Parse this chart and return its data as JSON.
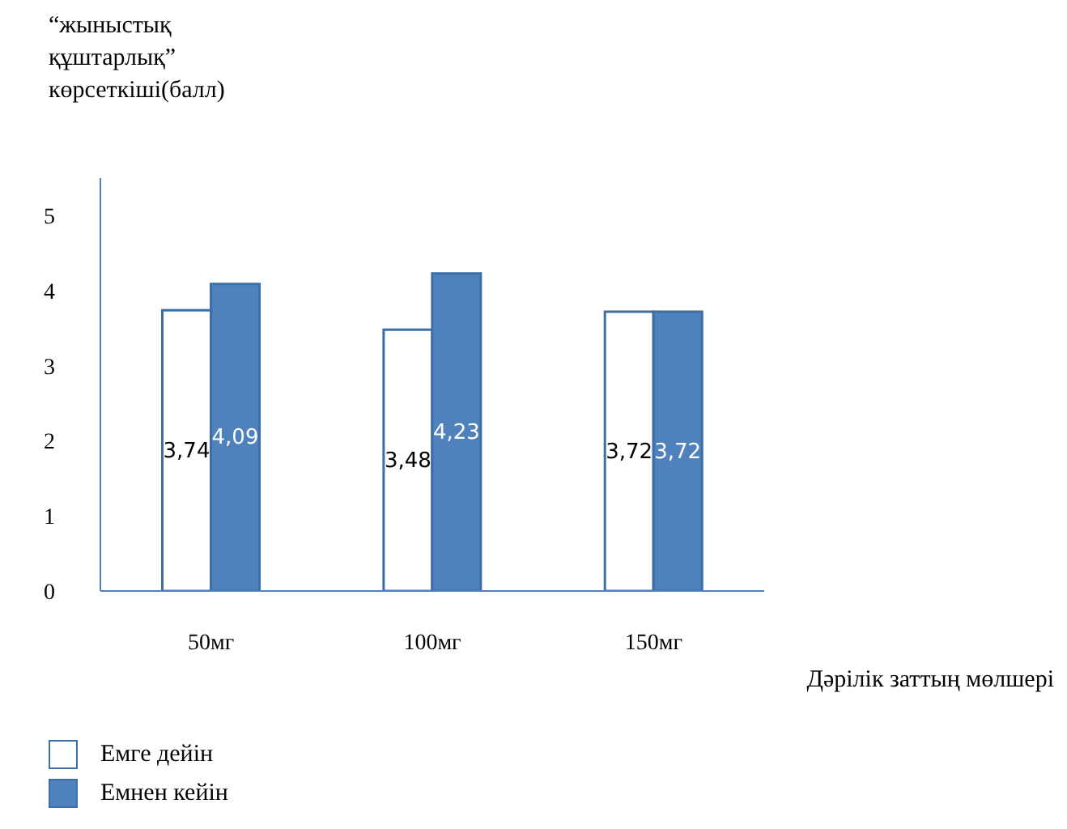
{
  "chart_data": {
    "type": "bar",
    "ylabel": "“жыныстық\nқұштарлық”\nкөрсеткіші(балл)",
    "xlabel": "Дәрілік заттың мөлшері",
    "categories": [
      "50мг",
      "100мг",
      "150мг"
    ],
    "series": [
      {
        "name": "Емге дейін",
        "color": "#ffffff",
        "values": [
          3.74,
          3.48,
          3.72
        ],
        "value_labels": [
          "3,74",
          "3,48",
          "3,72"
        ]
      },
      {
        "name": "Емнен кейін",
        "color": "#4f81bd",
        "values": [
          4.09,
          4.23,
          3.72
        ],
        "value_labels": [
          "4,09",
          "4,23",
          "3,72"
        ]
      }
    ],
    "ylim": [
      0,
      5.5
    ],
    "yticks": [
      0,
      1,
      2,
      3,
      4,
      5
    ],
    "grid": false,
    "legend": "bottom left"
  }
}
